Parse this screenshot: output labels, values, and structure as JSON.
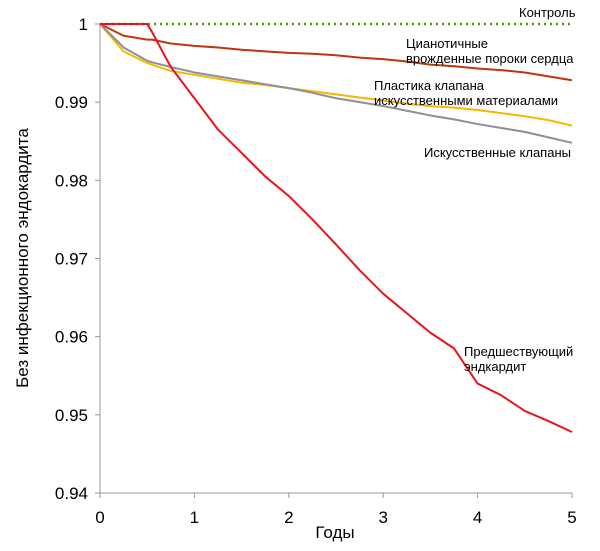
{
  "chart_data": {
    "type": "line",
    "x_label": "Годы",
    "y_label": "Без инфекционного эндокардита",
    "x": [
      0,
      0.25,
      0.5,
      0.55,
      0.75,
      1,
      1.25,
      1.5,
      1.75,
      2,
      2.25,
      2.5,
      2.75,
      3,
      3.25,
      3.5,
      3.75,
      4,
      4.25,
      4.5,
      4.75,
      5
    ],
    "xlim": [
      0,
      5
    ],
    "xticks": [
      0,
      1,
      2,
      3,
      4,
      5
    ],
    "ylim": [
      0.94,
      1
    ],
    "yticks": [
      0.94,
      0.95,
      0.96,
      0.97,
      0.98,
      0.99,
      1
    ],
    "series": [
      {
        "name": "Контроль",
        "color": "#4e9a06",
        "dashed": true,
        "values": [
          1,
          1,
          1,
          1,
          1,
          1,
          1,
          1,
          1,
          1,
          1,
          1,
          1,
          1,
          1,
          1,
          1,
          1,
          1,
          1,
          1,
          1
        ]
      },
      {
        "name": "Цианотичные\nврожденные пороки сердца",
        "color": "#c0360c",
        "values": [
          1,
          0.9985,
          0.998,
          0.998,
          0.9975,
          0.9972,
          0.997,
          0.9967,
          0.9965,
          0.9963,
          0.9962,
          0.996,
          0.9957,
          0.9955,
          0.9952,
          0.9948,
          0.9946,
          0.9943,
          0.9941,
          0.9938,
          0.9933,
          0.9928
        ]
      },
      {
        "name": "Пластика клапана\nискусственными материалами",
        "color": "#f5b800",
        "values": [
          1,
          0.9965,
          0.995,
          0.9948,
          0.994,
          0.9935,
          0.993,
          0.9925,
          0.9922,
          0.9918,
          0.9914,
          0.991,
          0.9906,
          0.9902,
          0.9898,
          0.9895,
          0.9893,
          0.989,
          0.9886,
          0.9882,
          0.9877,
          0.987
        ]
      },
      {
        "name": "Искусственные клапаны",
        "color": "#8e8e9c",
        "values": [
          1,
          0.997,
          0.9953,
          0.9951,
          0.9945,
          0.9938,
          0.9933,
          0.9928,
          0.9923,
          0.9918,
          0.9912,
          0.9905,
          0.99,
          0.9895,
          0.9889,
          0.9883,
          0.9878,
          0.9872,
          0.9867,
          0.9862,
          0.9855,
          0.9848
        ]
      },
      {
        "name": "Предшествующий\nэндкардит",
        "color": "#e8141a",
        "values": [
          1,
          1,
          1,
          0.999,
          0.9945,
          0.9905,
          0.9865,
          0.9835,
          0.9805,
          0.978,
          0.975,
          0.9718,
          0.9685,
          0.9655,
          0.963,
          0.9605,
          0.9585,
          0.954,
          0.9525,
          0.9505,
          0.9492,
          0.9478
        ]
      }
    ]
  }
}
